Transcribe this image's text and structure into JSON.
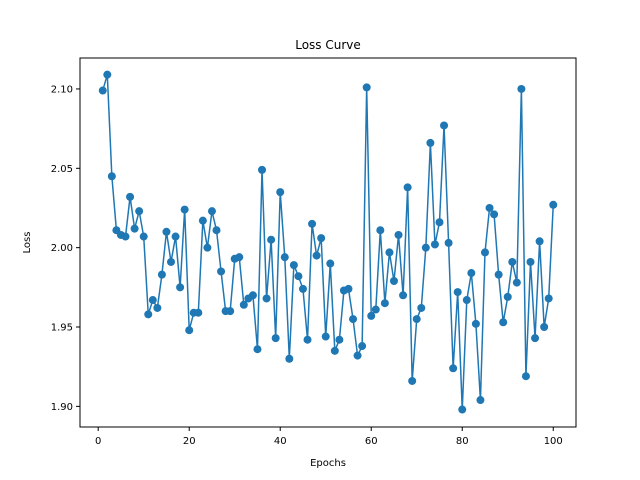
{
  "chart_data": {
    "type": "line",
    "title": "Loss Curve",
    "xlabel": "Epochs",
    "ylabel": "Loss",
    "xlim": [
      -4,
      105
    ],
    "ylim": [
      1.887,
      2.1195
    ],
    "x_ticks": [
      0,
      20,
      40,
      60,
      80,
      100
    ],
    "x_tick_labels": [
      "0",
      "20",
      "40",
      "60",
      "80",
      "100"
    ],
    "y_ticks": [
      1.9,
      1.95,
      2.0,
      2.05,
      2.1
    ],
    "y_tick_labels": [
      "1.90",
      "1.95",
      "2.00",
      "2.05",
      "2.10"
    ],
    "grid": false,
    "legend": "none",
    "marker": "circle",
    "series": [
      {
        "color": "#1f77b4",
        "x": [
          1,
          2,
          3,
          4,
          5,
          6,
          7,
          8,
          9,
          10,
          11,
          12,
          13,
          14,
          15,
          16,
          17,
          18,
          19,
          20,
          21,
          22,
          23,
          24,
          25,
          26,
          27,
          28,
          29,
          30,
          31,
          32,
          33,
          34,
          35,
          36,
          37,
          38,
          39,
          40,
          41,
          42,
          43,
          44,
          45,
          46,
          47,
          48,
          49,
          50,
          51,
          52,
          53,
          54,
          55,
          56,
          57,
          58,
          59,
          60,
          61,
          62,
          63,
          64,
          65,
          66,
          67,
          68,
          69,
          70,
          71,
          72,
          73,
          74,
          75,
          76,
          77,
          78,
          79,
          80,
          81,
          82,
          83,
          84,
          85,
          86,
          87,
          88,
          89,
          90,
          91,
          92,
          93,
          94,
          95,
          96,
          97,
          98,
          99,
          100
        ],
        "values": [
          2.099,
          2.109,
          2.045,
          2.011,
          2.008,
          2.007,
          2.032,
          2.012,
          2.023,
          2.007,
          1.958,
          1.967,
          1.962,
          1.983,
          2.01,
          1.991,
          2.007,
          1.975,
          2.024,
          1.948,
          1.959,
          1.959,
          2.017,
          2.0,
          2.023,
          2.011,
          1.985,
          1.96,
          1.96,
          1.993,
          1.994,
          1.964,
          1.968,
          1.97,
          1.936,
          2.049,
          1.968,
          2.005,
          1.943,
          2.035,
          1.994,
          1.93,
          1.989,
          1.982,
          1.974,
          1.942,
          2.015,
          1.995,
          2.006,
          1.944,
          1.99,
          1.935,
          1.942,
          1.973,
          1.974,
          1.955,
          1.932,
          1.938,
          2.101,
          1.957,
          1.961,
          2.011,
          1.965,
          1.997,
          1.979,
          2.008,
          1.97,
          2.038,
          1.916,
          1.955,
          1.962,
          2.0,
          2.066,
          2.002,
          2.016,
          2.077,
          2.003,
          1.924,
          1.972,
          1.898,
          1.967,
          1.984,
          1.952,
          1.904,
          1.997,
          2.025,
          2.021,
          1.983,
          1.953,
          1.969,
          1.991,
          1.978,
          2.1,
          1.919,
          1.991,
          1.943,
          2.004,
          1.95,
          1.968,
          2.027
        ]
      }
    ]
  }
}
